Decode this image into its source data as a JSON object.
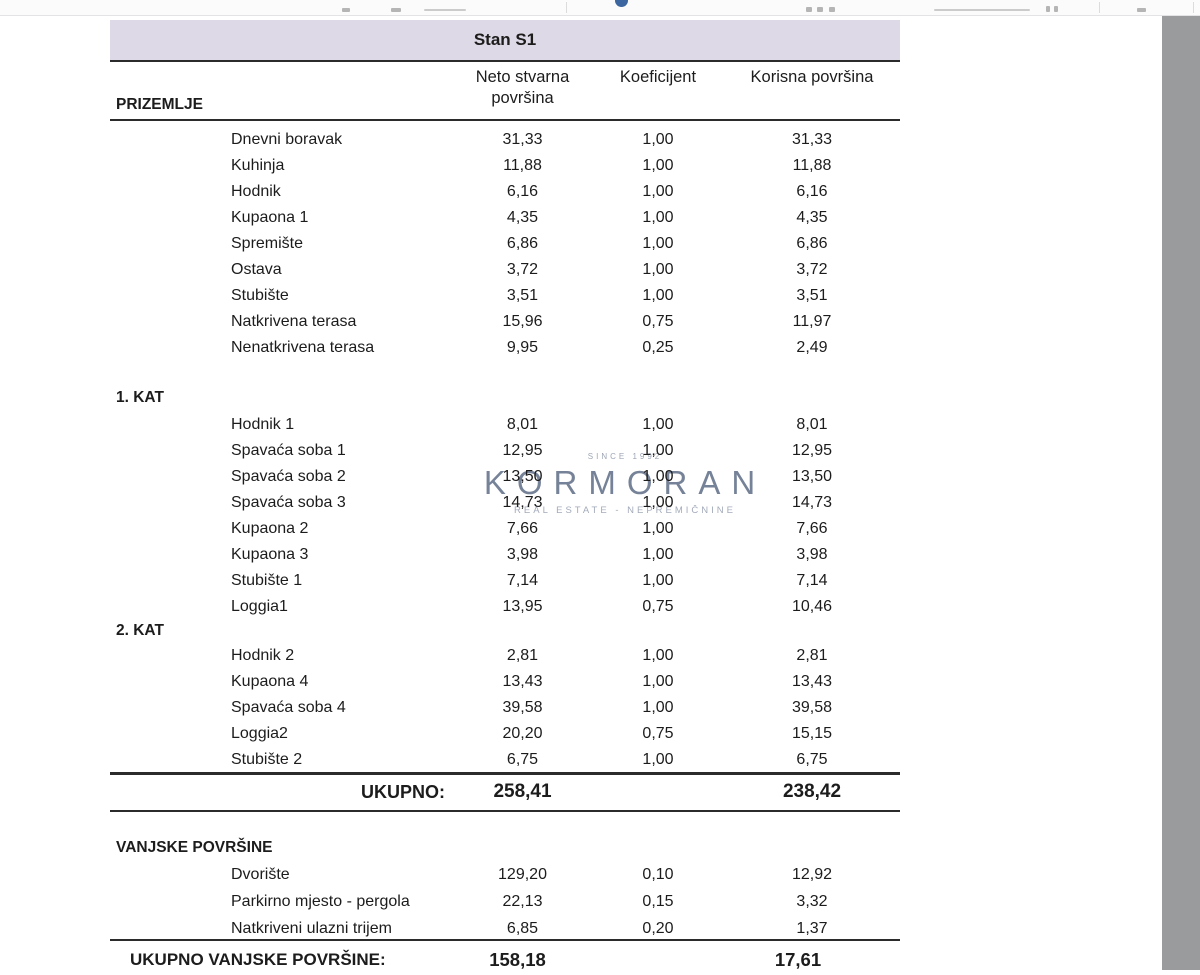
{
  "table": {
    "title": "Stan S1",
    "columns": [
      "Neto stvarna površina",
      "Koeficijent",
      "Korisna površina"
    ],
    "sections": [
      {
        "label": "PRIZEMLJE",
        "rows": [
          {
            "name": "Dnevni boravak",
            "neto": "31,33",
            "koef": "1,00",
            "korisna": "31,33"
          },
          {
            "name": "Kuhinja",
            "neto": "11,88",
            "koef": "1,00",
            "korisna": "11,88"
          },
          {
            "name": "Hodnik",
            "neto": "6,16",
            "koef": "1,00",
            "korisna": "6,16"
          },
          {
            "name": "Kupaona 1",
            "neto": "4,35",
            "koef": "1,00",
            "korisna": "4,35"
          },
          {
            "name": "Spremište",
            "neto": "6,86",
            "koef": "1,00",
            "korisna": "6,86"
          },
          {
            "name": "Ostava",
            "neto": "3,72",
            "koef": "1,00",
            "korisna": "3,72"
          },
          {
            "name": "Stubište",
            "neto": "3,51",
            "koef": "1,00",
            "korisna": "3,51"
          },
          {
            "name": "Natkrivena terasa",
            "neto": "15,96",
            "koef": "0,75",
            "korisna": "11,97"
          },
          {
            "name": "Nenatkrivena terasa",
            "neto": "9,95",
            "koef": "0,25",
            "korisna": "2,49"
          }
        ]
      },
      {
        "label": "1. KAT",
        "rows": [
          {
            "name": "Hodnik 1",
            "neto": "8,01",
            "koef": "1,00",
            "korisna": "8,01"
          },
          {
            "name": "Spavaća soba 1",
            "neto": "12,95",
            "koef": "1,00",
            "korisna": "12,95"
          },
          {
            "name": "Spavaća soba 2",
            "neto": "13,50",
            "koef": "1,00",
            "korisna": "13,50"
          },
          {
            "name": "Spavaća soba 3",
            "neto": "14,73",
            "koef": "1,00",
            "korisna": "14,73"
          },
          {
            "name": "Kupaona 2",
            "neto": "7,66",
            "koef": "1,00",
            "korisna": "7,66"
          },
          {
            "name": "Kupaona 3",
            "neto": "3,98",
            "koef": "1,00",
            "korisna": "3,98"
          },
          {
            "name": "Stubište 1",
            "neto": "7,14",
            "koef": "1,00",
            "korisna": "7,14"
          },
          {
            "name": "Loggia1",
            "neto": "13,95",
            "koef": "0,75",
            "korisna": "10,46"
          }
        ]
      },
      {
        "label": "2. KAT",
        "rows": [
          {
            "name": "Hodnik 2",
            "neto": "2,81",
            "koef": "1,00",
            "korisna": "2,81"
          },
          {
            "name": "Kupaona 4",
            "neto": "13,43",
            "koef": "1,00",
            "korisna": "13,43"
          },
          {
            "name": "Spavaća soba 4",
            "neto": "39,58",
            "koef": "1,00",
            "korisna": "39,58"
          },
          {
            "name": "Loggia2",
            "neto": "20,20",
            "koef": "0,75",
            "korisna": "15,15"
          },
          {
            "name": "Stubište 2",
            "neto": "6,75",
            "koef": "1,00",
            "korisna": "6,75"
          }
        ]
      },
      {
        "label": "VANJSKE POVRŠINE",
        "rows": [
          {
            "name": "Dvorište",
            "neto": "129,20",
            "koef": "0,10",
            "korisna": "12,92"
          },
          {
            "name": "Parkirno mjesto - pergola",
            "neto": "22,13",
            "koef": "0,15",
            "korisna": "3,32"
          },
          {
            "name": "Natkriveni ulazni trijem",
            "neto": "6,85",
            "koef": "0,20",
            "korisna": "1,37"
          }
        ]
      }
    ],
    "totals": {
      "ukupno": {
        "label": "UKUPNO:",
        "neto": "258,41",
        "korisna": "238,42"
      },
      "vanjske": {
        "label": "UKUPNO VANJSKE POVRŠINE:",
        "neto": "158,18",
        "korisna": "17,61"
      }
    }
  },
  "watermark": {
    "since": "SINCE 1992",
    "name": "KORMORAN",
    "tagline": "REAL ESTATE - NEPREMIČNINE"
  },
  "colors": {
    "title_band": "#ded9e6",
    "rule": "#2b2b2b",
    "text": "#1c1c1c",
    "watermark": "#5d6d86",
    "watermark_sub": "#8b95a8",
    "viewer_gutter": "#999b9c",
    "toolbar_bg": "#fbfbfb",
    "toolbar_border": "#e3e3e6",
    "toolbar_accent": "#3b66a0"
  }
}
